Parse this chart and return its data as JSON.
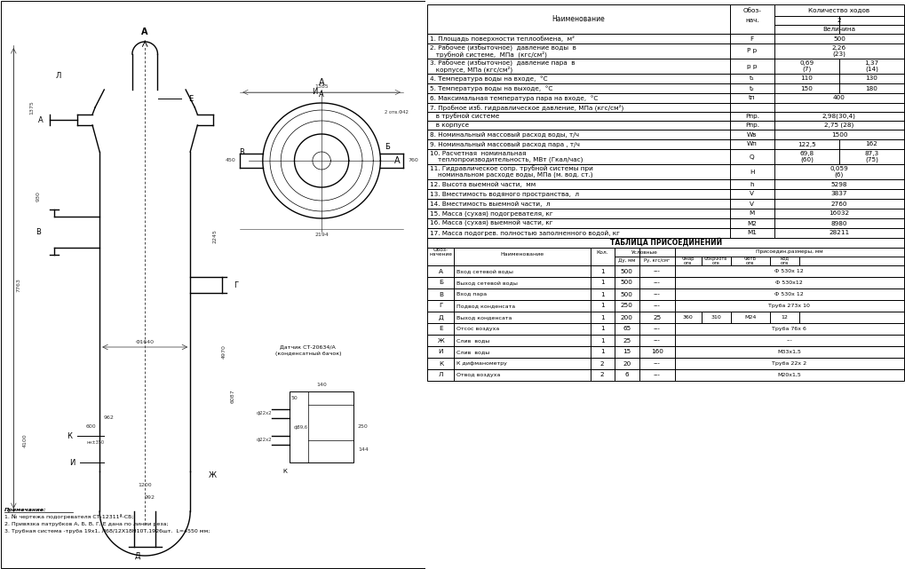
{
  "bg_color": "#f5f5f0",
  "title_upper": "",
  "table1_header": [
    "Наименование",
    "Обоз-\nнач.",
    "Количество ходов\n2\nВеличина"
  ],
  "table1_rows": [
    [
      "1. Площадь поверхности теплообмена,  м²",
      "F",
      "500",
      ""
    ],
    [
      "2. Рабочее (избыточное)  давление воды  в\n   трубной системе,  МПа  (кгс/см²)",
      "Р р",
      "2,26\n(23)",
      ""
    ],
    [
      "3. Рабочее (избыточное)  давление пара  в\n   корпусе, МПа (кгс/см²)",
      "р р",
      "0,69\n(7)",
      "1,37\n(14)"
    ],
    [
      "4. Температура воды на входе,  °С",
      "t 1",
      "110",
      "130"
    ],
    [
      "5. Температура воды на выходе,  °С",
      "t 2",
      "150",
      "180"
    ],
    [
      "6. Максимальная температура пара на входе,  °С",
      "t п",
      "400",
      ""
    ],
    [
      "7. Пробное изб. гидравлическое давление, МПа (кгс/см²)",
      "",
      "",
      ""
    ],
    [
      "   в трубной системе",
      "Р пр.",
      "2,98 (30,4)",
      ""
    ],
    [
      "   в корпусе",
      "Р пр.",
      "2,75  (28)",
      ""
    ],
    [
      "8. Номинальный массовый расход воды, т/ч",
      "W В",
      "1500",
      ""
    ],
    [
      "9. Номинальный массовый расход пара , т/ч",
      "W п",
      "122,5",
      "162"
    ],
    [
      "10. Расчетная  номинальная\n    теплопроизводительность, МВт (Гкал/час)",
      "Q",
      "69,8\n(60)",
      "87,3\n(75)"
    ],
    [
      "11. Гидравлическое сопр. трубной системы при\n    номинальном расходе воды, МПа (м. вод. ст.)",
      "H",
      "0,059\n(6)",
      ""
    ],
    [
      "12. Высота выемной части,  мм",
      "h",
      "5298",
      ""
    ],
    [
      "13. Вместимость водяного пространства,  л",
      "V",
      "3837",
      ""
    ],
    [
      "14. Вместимость выемной части,  л",
      "V",
      "2760",
      ""
    ],
    [
      "15. Масса (сухая) подогревателя, кг",
      "M",
      "16032",
      ""
    ],
    [
      "16. Масса (сухая) выемной части, кг",
      "M2",
      "8980",
      ""
    ],
    [
      "17. Масса подогрев. полностью заполненного водой, кг",
      "M1",
      "28211",
      ""
    ]
  ],
  "table2_title": "ТАБЛИЦА ПРИСОЕДИНЕНИЙ",
  "table2_header": [
    "Обоз-\nначение",
    "Наименование",
    "Кол.",
    "Ду, мм",
    "Ру, кгс/см²",
    "Фнар\nотв",
    "ФокрФотв\nотв",
    "ФотВ\nотв",
    "код\nотв"
  ],
  "table2_rows": [
    [
      "А",
      "Вход сетевой воды",
      "1",
      "500",
      "---",
      "",
      "Ф 530х 12",
      "",
      ""
    ],
    [
      "Б",
      "Выход сетевой воды",
      "1",
      "500",
      "---",
      "",
      "Ф 530х12",
      "",
      ""
    ],
    [
      "В",
      "Вход пара",
      "1",
      "500",
      "---",
      "",
      "Ф 530х 12",
      "",
      ""
    ],
    [
      "Г",
      "Подвод конденсата",
      "1",
      "250",
      "---",
      "",
      "Труба 273х 10",
      "",
      ""
    ],
    [
      "Д",
      "Выход конденсата",
      "1",
      "200",
      "25",
      "360",
      "310",
      "М24",
      "12"
    ],
    [
      "Е",
      "Отсос воздуха",
      "1",
      "65",
      "---",
      "",
      "Труба 76х 6",
      "",
      ""
    ],
    [
      "Ж",
      "Слив  воды",
      "1",
      "25",
      "---",
      "",
      "---",
      "",
      ""
    ],
    [
      "И",
      "Слив  воды",
      "1",
      "15",
      "160",
      "",
      "М33х1,5",
      "",
      ""
    ],
    [
      "К",
      "К дифманометру",
      "2",
      "20",
      "---",
      "",
      "Труба 22х 2",
      "",
      ""
    ],
    [
      "Л",
      "Отвод воздуха",
      "2",
      "6",
      "---",
      "",
      "М20х1,5",
      "",
      ""
    ]
  ],
  "note_lines": [
    "Примечание:",
    "1. №  чертежа подогревателя СТ-12311ª-СБ;",
    "2. Привязка патрубков А, Б, В, Г, Е дана по линии реза;",
    "3. Трубная система -труба 19х1, Л68/12Х18Н10Т,1926шт.  L=4550 мм;"
  ]
}
